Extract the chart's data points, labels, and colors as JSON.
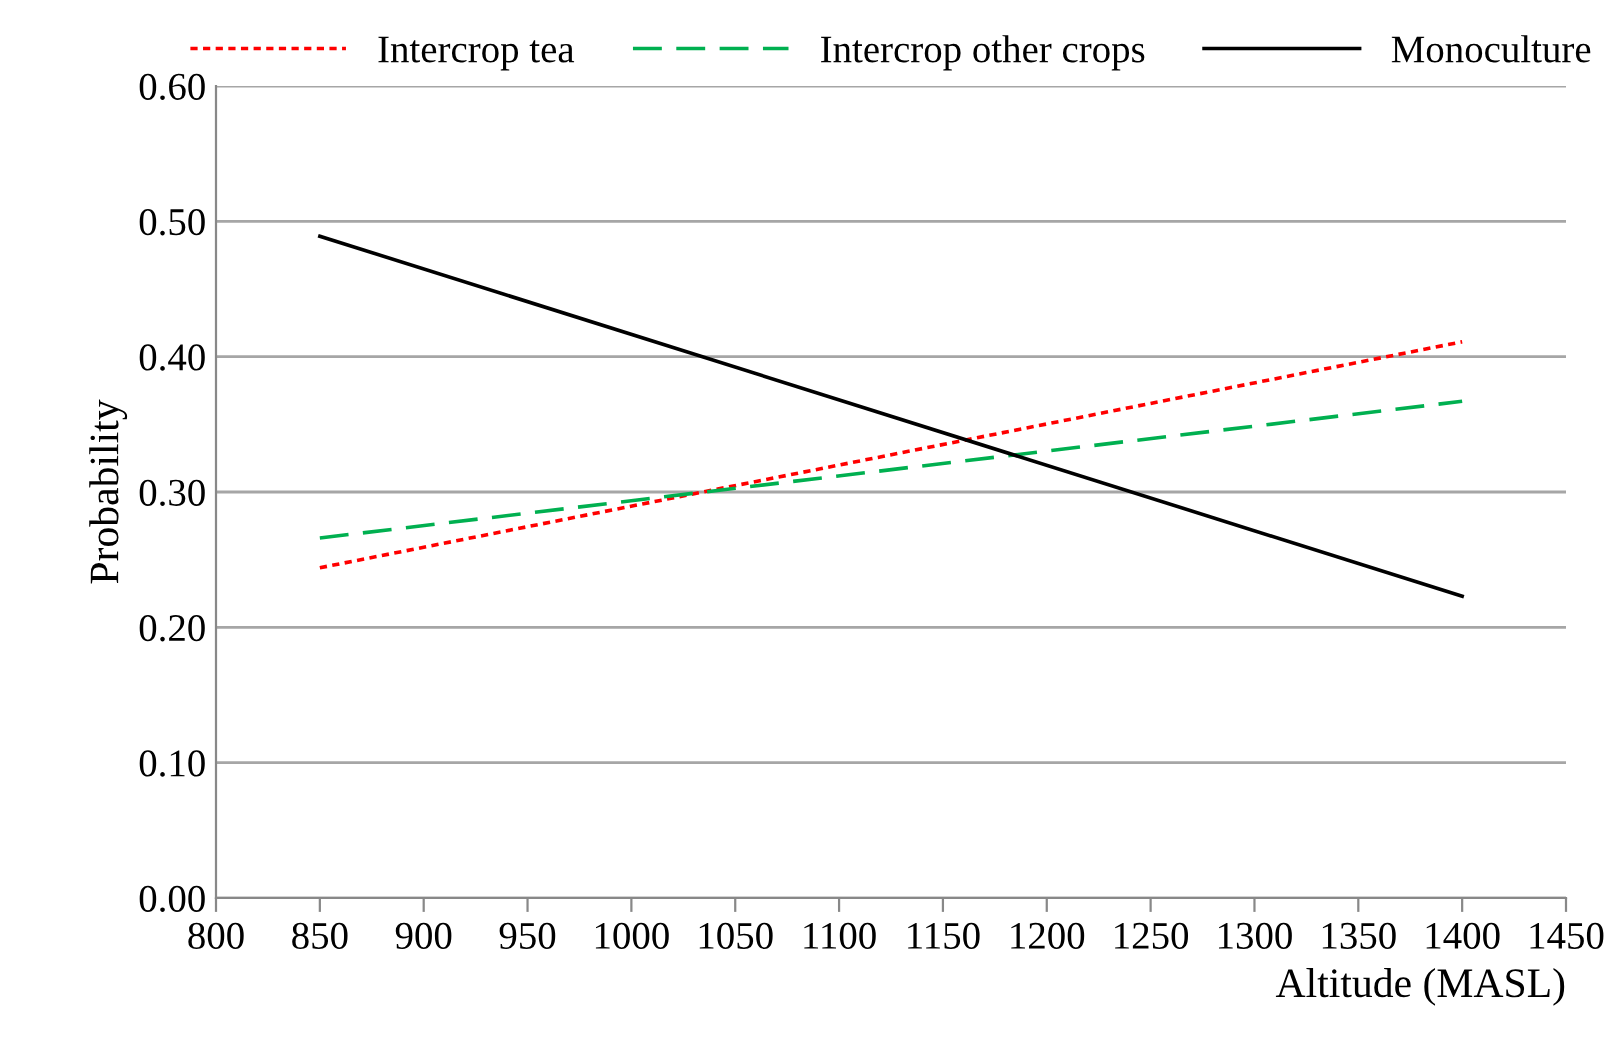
{
  "chart_data": {
    "type": "line",
    "xlabel": "Altitude (MASL)",
    "ylabel": "Probability",
    "series": [
      {
        "name": "Intercrop tea",
        "color": "#ff0000",
        "line_style": "dotted",
        "values": [
          0.244,
          0.411
        ]
      },
      {
        "name": "Intercrop other crops",
        "color": "#00b050",
        "line_style": "dashed",
        "values": [
          0.266,
          0.367
        ]
      },
      {
        "name": "Monoculture",
        "color": "#000000",
        "line_style": "solid",
        "values": [
          0.489,
          0.223
        ]
      }
    ],
    "x": [
      850,
      1400
    ],
    "xlim": [
      800,
      1450
    ],
    "xticks": [
      800,
      850,
      900,
      950,
      1000,
      1050,
      1100,
      1150,
      1200,
      1250,
      1300,
      1350,
      1400,
      1450
    ],
    "ylim": [
      0,
      0.6
    ],
    "yticks": [
      {
        "value": 0,
        "label": "0.00"
      },
      {
        "value": 0.1,
        "label": "0.10"
      },
      {
        "value": 0.2,
        "label": "0.20"
      },
      {
        "value": 0.3,
        "label": "0.30"
      },
      {
        "value": 0.4,
        "label": "0.40"
      },
      {
        "value": 0.5,
        "label": "0.50"
      },
      {
        "value": 0.6,
        "label": "0.60"
      }
    ],
    "grid": "y",
    "legend": "top",
    "marker": "none"
  }
}
